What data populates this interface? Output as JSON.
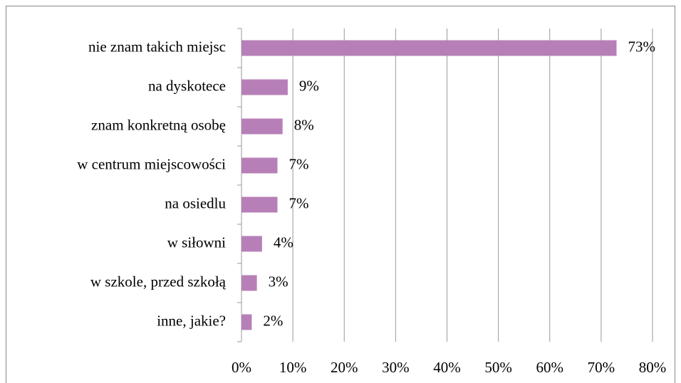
{
  "chart_data": {
    "type": "bar",
    "orientation": "horizontal",
    "categories": [
      "nie znam takich miejsc",
      "na dyskotece",
      "znam konkretną osobę",
      "w centrum miejscowości",
      "na osiedlu",
      "w siłowni",
      "w szkole, przed szkołą",
      "inne, jakie?"
    ],
    "values": [
      73,
      9,
      8,
      7,
      7,
      4,
      3,
      2
    ],
    "value_labels": [
      "73%",
      "9%",
      "8%",
      "7%",
      "7%",
      "4%",
      "3%",
      "2%"
    ],
    "color": "#b77fb7",
    "xlim": [
      0,
      80
    ],
    "xticks": [
      {
        "value": 0,
        "label": "0%"
      },
      {
        "value": 10,
        "label": "10%"
      },
      {
        "value": 20,
        "label": "20%"
      },
      {
        "value": 30,
        "label": "30%"
      },
      {
        "value": 40,
        "label": "40%"
      },
      {
        "value": 50,
        "label": "50%"
      },
      {
        "value": 60,
        "label": "60%"
      },
      {
        "value": 70,
        "label": "70%"
      },
      {
        "value": 80,
        "label": "80%"
      }
    ],
    "grid": true
  }
}
